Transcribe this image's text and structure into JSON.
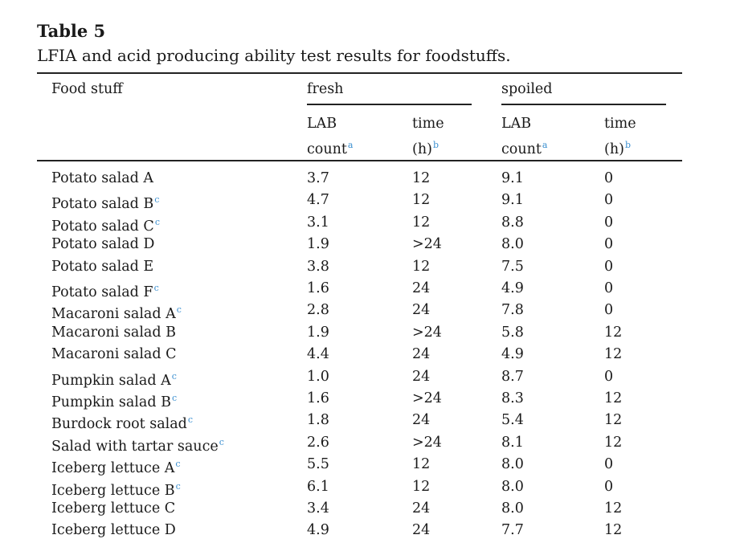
{
  "table": {
    "label": "Table 5",
    "caption": "LFIA and acid producing ability test results for foodstuffs.",
    "headers": {
      "food_stuff": "Food stuff",
      "fresh": "fresh",
      "spoiled": "spoiled",
      "lab_line1": "LAB",
      "lab_line2": "count",
      "lab_note": "a",
      "time_line1": "time",
      "time_line2": "(h)",
      "time_note": "b"
    },
    "rows": [
      {
        "food": "Potato salad A",
        "note": "",
        "fresh_lab": "3.7",
        "fresh_time": "12",
        "spoiled_lab": "9.1",
        "spoiled_time": "0"
      },
      {
        "food": "Potato salad B",
        "note": "c",
        "fresh_lab": "4.7",
        "fresh_time": "12",
        "spoiled_lab": "9.1",
        "spoiled_time": "0"
      },
      {
        "food": "Potato salad C",
        "note": "c",
        "fresh_lab": "3.1",
        "fresh_time": "12",
        "spoiled_lab": "8.8",
        "spoiled_time": "0"
      },
      {
        "food": "Potato salad D",
        "note": "",
        "fresh_lab": "1.9",
        "fresh_time": ">24",
        "spoiled_lab": "8.0",
        "spoiled_time": "0"
      },
      {
        "food": "Potato salad E",
        "note": "",
        "fresh_lab": "3.8",
        "fresh_time": "12",
        "spoiled_lab": "7.5",
        "spoiled_time": "0"
      },
      {
        "food": "Potato salad F",
        "note": "c",
        "fresh_lab": "1.6",
        "fresh_time": "24",
        "spoiled_lab": "4.9",
        "spoiled_time": "0"
      },
      {
        "food": "Macaroni salad A",
        "note": "c",
        "fresh_lab": "2.8",
        "fresh_time": "24",
        "spoiled_lab": "7.8",
        "spoiled_time": "0"
      },
      {
        "food": "Macaroni salad B",
        "note": "",
        "fresh_lab": "1.9",
        "fresh_time": ">24",
        "spoiled_lab": "5.8",
        "spoiled_time": "12"
      },
      {
        "food": "Macaroni salad C",
        "note": "",
        "fresh_lab": "4.4",
        "fresh_time": "24",
        "spoiled_lab": "4.9",
        "spoiled_time": "12"
      },
      {
        "food": "Pumpkin salad A",
        "note": "c",
        "fresh_lab": "1.0",
        "fresh_time": "24",
        "spoiled_lab": "8.7",
        "spoiled_time": "0"
      },
      {
        "food": "Pumpkin salad B",
        "note": "c",
        "fresh_lab": "1.6",
        "fresh_time": ">24",
        "spoiled_lab": "8.3",
        "spoiled_time": "12"
      },
      {
        "food": "Burdock root salad",
        "note": "c",
        "fresh_lab": "1.8",
        "fresh_time": "24",
        "spoiled_lab": "5.4",
        "spoiled_time": "12"
      },
      {
        "food": "Salad with tartar sauce",
        "note": "c",
        "fresh_lab": "2.6",
        "fresh_time": ">24",
        "spoiled_lab": "8.1",
        "spoiled_time": "12"
      },
      {
        "food": "Iceberg lettuce A",
        "note": "c",
        "fresh_lab": "5.5",
        "fresh_time": "12",
        "spoiled_lab": "8.0",
        "spoiled_time": "0"
      },
      {
        "food": "Iceberg lettuce B",
        "note": "c",
        "fresh_lab": "6.1",
        "fresh_time": "12",
        "spoiled_lab": "8.0",
        "spoiled_time": "0"
      },
      {
        "food": "Iceberg lettuce C",
        "note": "",
        "fresh_lab": "3.4",
        "fresh_time": "24",
        "spoiled_lab": "8.0",
        "spoiled_time": "12"
      },
      {
        "food": "Iceberg lettuce D",
        "note": "",
        "fresh_lab": "4.9",
        "fresh_time": "24",
        "spoiled_lab": "7.7",
        "spoiled_time": "12"
      }
    ]
  }
}
